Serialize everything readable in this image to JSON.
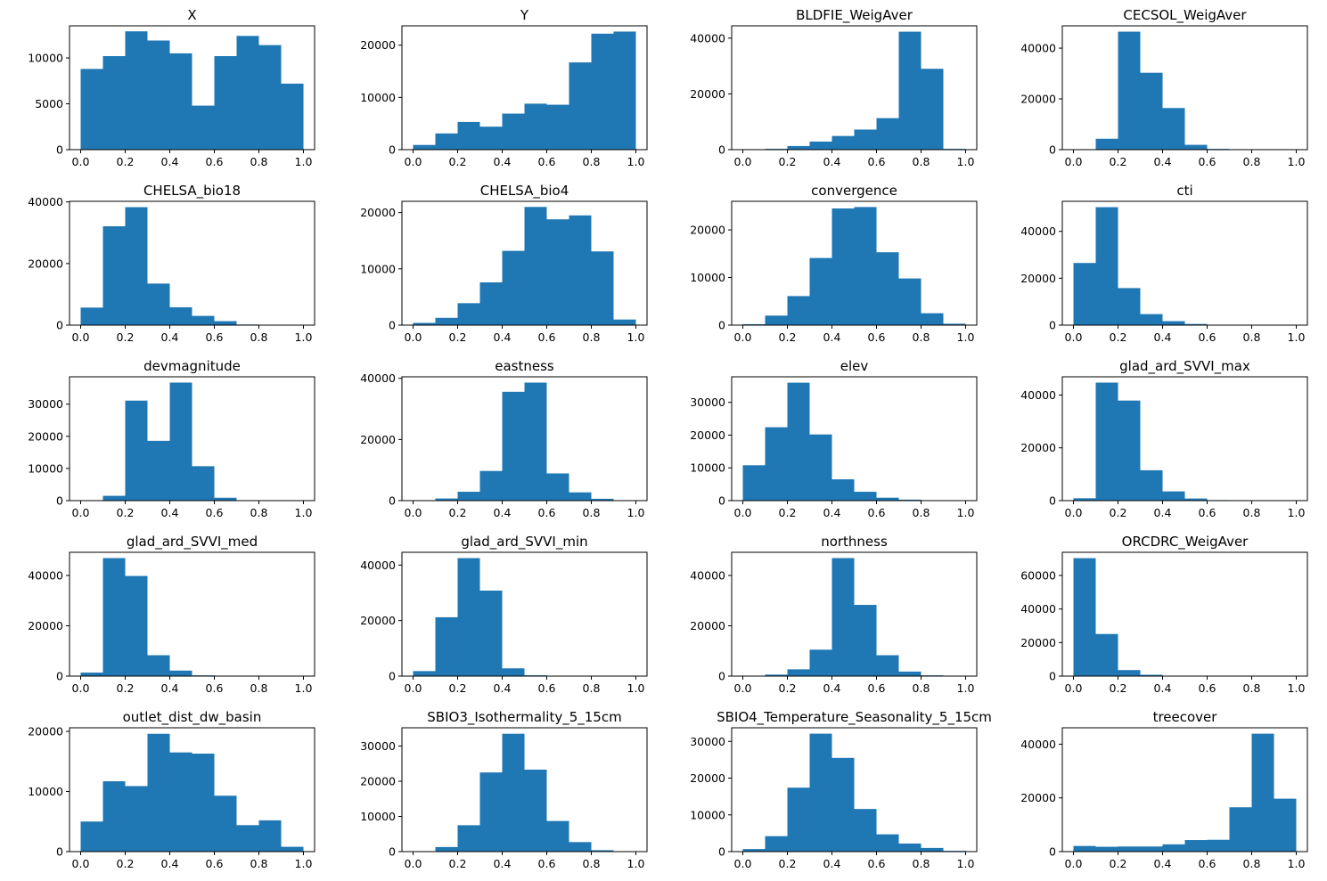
{
  "colors": {
    "bar": "#1f77b4",
    "axis": "#000000",
    "background": "#ffffff"
  },
  "chart_data": [
    {
      "type": "bar",
      "title": "X",
      "bin_edges": [
        0,
        0.1,
        0.2,
        0.3,
        0.4,
        0.5,
        0.6,
        0.7,
        0.8,
        0.9,
        1.0
      ],
      "values": [
        8800,
        10200,
        12900,
        11900,
        10500,
        4800,
        10200,
        12400,
        11400,
        7200
      ],
      "xlim": [
        -0.05,
        1.05
      ],
      "ylim": [
        0,
        13500
      ],
      "xticks": [
        0,
        0.2,
        0.4,
        0.6,
        0.8,
        1.0
      ],
      "xtick_labels": [
        "0.0",
        "0.2",
        "0.4",
        "0.6",
        "0.8",
        "1.0"
      ],
      "yticks": [
        0,
        5000,
        10000
      ],
      "ytick_labels": [
        "0",
        "5000",
        "10000"
      ]
    },
    {
      "type": "bar",
      "title": "Y",
      "bin_edges": [
        0,
        0.1,
        0.2,
        0.3,
        0.4,
        0.5,
        0.6,
        0.7,
        0.8,
        0.9,
        1.0
      ],
      "values": [
        900,
        3100,
        5300,
        4400,
        6900,
        8800,
        8600,
        16700,
        22200,
        22600
      ],
      "xlim": [
        -0.05,
        1.05
      ],
      "ylim": [
        0,
        23700
      ],
      "xticks": [
        0,
        0.2,
        0.4,
        0.6,
        0.8,
        1.0
      ],
      "xtick_labels": [
        "0.0",
        "0.2",
        "0.4",
        "0.6",
        "0.8",
        "1.0"
      ],
      "yticks": [
        0,
        10000,
        20000
      ],
      "ytick_labels": [
        "0",
        "10000",
        "20000"
      ]
    },
    {
      "type": "bar",
      "title": "BLDFIE_WeigAver",
      "bin_edges": [
        0,
        0.1,
        0.2,
        0.3,
        0.4,
        0.5,
        0.6,
        0.7,
        0.8,
        0.9,
        1.0
      ],
      "values": [
        0,
        300,
        1300,
        2900,
        4900,
        7200,
        11300,
        42300,
        29000,
        300
      ],
      "xlim": [
        -0.05,
        1.05
      ],
      "ylim": [
        0,
        44400
      ],
      "xticks": [
        0,
        0.2,
        0.4,
        0.6,
        0.8,
        1.0
      ],
      "xtick_labels": [
        "0.0",
        "0.2",
        "0.4",
        "0.6",
        "0.8",
        "1.0"
      ],
      "yticks": [
        0,
        20000,
        40000
      ],
      "ytick_labels": [
        "0",
        "20000",
        "40000"
      ]
    },
    {
      "type": "bar",
      "title": "CECSOL_WeigAver",
      "bin_edges": [
        0,
        0.1,
        0.2,
        0.3,
        0.4,
        0.5,
        0.6,
        0.7,
        0.8,
        0.9,
        1.0
      ],
      "values": [
        0,
        4300,
        46500,
        30300,
        16400,
        1900,
        300,
        100,
        0,
        0
      ],
      "xlim": [
        -0.05,
        1.05
      ],
      "ylim": [
        0,
        48800
      ],
      "xticks": [
        0,
        0.2,
        0.4,
        0.6,
        0.8,
        1.0
      ],
      "xtick_labels": [
        "0.0",
        "0.2",
        "0.4",
        "0.6",
        "0.8",
        "1.0"
      ],
      "yticks": [
        0,
        20000,
        40000
      ],
      "ytick_labels": [
        "0",
        "20000",
        "40000"
      ]
    },
    {
      "type": "bar",
      "title": "CHELSA_bio18",
      "bin_edges": [
        0,
        0.1,
        0.2,
        0.3,
        0.4,
        0.5,
        0.6,
        0.7,
        0.8,
        0.9,
        1.0
      ],
      "values": [
        5700,
        32100,
        38300,
        13500,
        5800,
        3000,
        1300,
        200,
        100,
        0
      ],
      "xlim": [
        -0.05,
        1.05
      ],
      "ylim": [
        0,
        40200
      ],
      "xticks": [
        0,
        0.2,
        0.4,
        0.6,
        0.8,
        1.0
      ],
      "xtick_labels": [
        "0.0",
        "0.2",
        "0.4",
        "0.6",
        "0.8",
        "1.0"
      ],
      "yticks": [
        0,
        20000,
        40000
      ],
      "ytick_labels": [
        "0",
        "20000",
        "40000"
      ]
    },
    {
      "type": "bar",
      "title": "CHELSA_bio4",
      "bin_edges": [
        0,
        0.1,
        0.2,
        0.3,
        0.4,
        0.5,
        0.6,
        0.7,
        0.8,
        0.9,
        1.0
      ],
      "values": [
        400,
        1300,
        3900,
        7600,
        13200,
        21000,
        18800,
        19500,
        13100,
        1000
      ],
      "xlim": [
        -0.05,
        1.05
      ],
      "ylim": [
        0,
        22000
      ],
      "xticks": [
        0,
        0.2,
        0.4,
        0.6,
        0.8,
        1.0
      ],
      "xtick_labels": [
        "0.0",
        "0.2",
        "0.4",
        "0.6",
        "0.8",
        "1.0"
      ],
      "yticks": [
        0,
        10000,
        20000
      ],
      "ytick_labels": [
        "0",
        "10000",
        "20000"
      ]
    },
    {
      "type": "bar",
      "title": "convergence",
      "bin_edges": [
        0,
        0.1,
        0.2,
        0.3,
        0.4,
        0.5,
        0.6,
        0.7,
        0.8,
        0.9,
        1.0
      ],
      "values": [
        200,
        2000,
        6100,
        14100,
        24500,
        24800,
        15300,
        9800,
        2500,
        300
      ],
      "xlim": [
        -0.05,
        1.05
      ],
      "ylim": [
        0,
        26000
      ],
      "xticks": [
        0,
        0.2,
        0.4,
        0.6,
        0.8,
        1.0
      ],
      "xtick_labels": [
        "0.0",
        "0.2",
        "0.4",
        "0.6",
        "0.8",
        "1.0"
      ],
      "yticks": [
        0,
        10000,
        20000
      ],
      "ytick_labels": [
        "0",
        "10000",
        "20000"
      ]
    },
    {
      "type": "bar",
      "title": "cti",
      "bin_edges": [
        0,
        0.1,
        0.2,
        0.3,
        0.4,
        0.5,
        0.6,
        0.7,
        0.8,
        0.9,
        1.0
      ],
      "values": [
        26500,
        50300,
        15800,
        4700,
        1700,
        500,
        100,
        0,
        0,
        0
      ],
      "xlim": [
        -0.05,
        1.05
      ],
      "ylim": [
        0,
        52800
      ],
      "xticks": [
        0,
        0.2,
        0.4,
        0.6,
        0.8,
        1.0
      ],
      "xtick_labels": [
        "0.0",
        "0.2",
        "0.4",
        "0.6",
        "0.8",
        "1.0"
      ],
      "yticks": [
        0,
        20000,
        40000
      ],
      "ytick_labels": [
        "0",
        "20000",
        "40000"
      ]
    },
    {
      "type": "bar",
      "title": "devmagnitude",
      "bin_edges": [
        0,
        0.1,
        0.2,
        0.3,
        0.4,
        0.5,
        0.6,
        0.7,
        0.8,
        0.9,
        1.0
      ],
      "values": [
        0,
        1500,
        31100,
        18600,
        36700,
        10700,
        900,
        100,
        0,
        0
      ],
      "xlim": [
        -0.05,
        1.05
      ],
      "ylim": [
        0,
        38500
      ],
      "xticks": [
        0,
        0.2,
        0.4,
        0.6,
        0.8,
        1.0
      ],
      "xtick_labels": [
        "0.0",
        "0.2",
        "0.4",
        "0.6",
        "0.8",
        "1.0"
      ],
      "yticks": [
        0,
        10000,
        20000,
        30000
      ],
      "ytick_labels": [
        "0",
        "10000",
        "20000",
        "30000"
      ]
    },
    {
      "type": "bar",
      "title": "eastness",
      "bin_edges": [
        0,
        0.1,
        0.2,
        0.3,
        0.4,
        0.5,
        0.6,
        0.7,
        0.8,
        0.9,
        1.0
      ],
      "values": [
        100,
        700,
        2900,
        9700,
        35600,
        38600,
        8900,
        2700,
        600,
        100
      ],
      "xlim": [
        -0.05,
        1.05
      ],
      "ylim": [
        0,
        40500
      ],
      "xticks": [
        0,
        0.2,
        0.4,
        0.6,
        0.8,
        1.0
      ],
      "xtick_labels": [
        "0.0",
        "0.2",
        "0.4",
        "0.6",
        "0.8",
        "1.0"
      ],
      "yticks": [
        0,
        20000,
        40000
      ],
      "ytick_labels": [
        "0",
        "20000",
        "40000"
      ]
    },
    {
      "type": "bar",
      "title": "elev",
      "bin_edges": [
        0,
        0.1,
        0.2,
        0.3,
        0.4,
        0.5,
        0.6,
        0.7,
        0.8,
        0.9,
        1.0
      ],
      "values": [
        10800,
        22400,
        36000,
        20200,
        6500,
        2700,
        900,
        300,
        100,
        0
      ],
      "xlim": [
        -0.05,
        1.05
      ],
      "ylim": [
        0,
        37800
      ],
      "xticks": [
        0,
        0.2,
        0.4,
        0.6,
        0.8,
        1.0
      ],
      "xtick_labels": [
        "0.0",
        "0.2",
        "0.4",
        "0.6",
        "0.8",
        "1.0"
      ],
      "yticks": [
        0,
        10000,
        20000,
        30000
      ],
      "ytick_labels": [
        "0",
        "10000",
        "20000",
        "30000"
      ]
    },
    {
      "type": "bar",
      "title": "glad_ard_SVVI_max",
      "bin_edges": [
        0,
        0.1,
        0.2,
        0.3,
        0.4,
        0.5,
        0.6,
        0.7,
        0.8,
        0.9,
        1.0
      ],
      "values": [
        900,
        44700,
        37900,
        11500,
        3500,
        800,
        200,
        0,
        0,
        0
      ],
      "xlim": [
        -0.05,
        1.05
      ],
      "ylim": [
        0,
        46900
      ],
      "xticks": [
        0,
        0.2,
        0.4,
        0.6,
        0.8,
        1.0
      ],
      "xtick_labels": [
        "0.0",
        "0.2",
        "0.4",
        "0.6",
        "0.8",
        "1.0"
      ],
      "yticks": [
        0,
        20000,
        40000
      ],
      "ytick_labels": [
        "0",
        "20000",
        "40000"
      ]
    },
    {
      "type": "bar",
      "title": "glad_ard_SVVI_med",
      "bin_edges": [
        0,
        0.1,
        0.2,
        0.3,
        0.4,
        0.5,
        0.6,
        0.7,
        0.8,
        0.9,
        1.0
      ],
      "values": [
        1400,
        46900,
        39800,
        8300,
        2200,
        300,
        100,
        0,
        0,
        0
      ],
      "xlim": [
        -0.05,
        1.05
      ],
      "ylim": [
        0,
        49200
      ],
      "xticks": [
        0,
        0.2,
        0.4,
        0.6,
        0.8,
        1.0
      ],
      "xtick_labels": [
        "0.0",
        "0.2",
        "0.4",
        "0.6",
        "0.8",
        "1.0"
      ],
      "yticks": [
        0,
        20000,
        40000
      ],
      "ytick_labels": [
        "0",
        "20000",
        "40000"
      ]
    },
    {
      "type": "bar",
      "title": "glad_ard_SVVI_min",
      "bin_edges": [
        0,
        0.1,
        0.2,
        0.3,
        0.4,
        0.5,
        0.6,
        0.7,
        0.8,
        0.9,
        1.0
      ],
      "values": [
        1800,
        21200,
        42500,
        30800,
        2800,
        300,
        0,
        0,
        0,
        0
      ],
      "xlim": [
        -0.05,
        1.05
      ],
      "ylim": [
        0,
        44600
      ],
      "xticks": [
        0,
        0.2,
        0.4,
        0.6,
        0.8,
        1.0
      ],
      "xtick_labels": [
        "0.0",
        "0.2",
        "0.4",
        "0.6",
        "0.8",
        "1.0"
      ],
      "yticks": [
        0,
        20000,
        40000
      ],
      "ytick_labels": [
        "0",
        "20000",
        "40000"
      ]
    },
    {
      "type": "bar",
      "title": "northness",
      "bin_edges": [
        0,
        0.1,
        0.2,
        0.3,
        0.4,
        0.5,
        0.6,
        0.7,
        0.8,
        0.9,
        1.0
      ],
      "values": [
        100,
        600,
        2700,
        10500,
        46900,
        28300,
        8300,
        1800,
        300,
        0
      ],
      "xlim": [
        -0.05,
        1.05
      ],
      "ylim": [
        0,
        49200
      ],
      "xticks": [
        0,
        0.2,
        0.4,
        0.6,
        0.8,
        1.0
      ],
      "xtick_labels": [
        "0.0",
        "0.2",
        "0.4",
        "0.6",
        "0.8",
        "1.0"
      ],
      "yticks": [
        0,
        20000,
        40000
      ],
      "ytick_labels": [
        "0",
        "20000",
        "40000"
      ]
    },
    {
      "type": "bar",
      "title": "ORCDRC_WeigAver",
      "bin_edges": [
        0,
        0.1,
        0.2,
        0.3,
        0.4,
        0.5,
        0.6,
        0.7,
        0.8,
        0.9,
        1.0
      ],
      "values": [
        70300,
        25100,
        3600,
        800,
        200,
        100,
        0,
        0,
        0,
        0
      ],
      "xlim": [
        -0.05,
        1.05
      ],
      "ylim": [
        0,
        73800
      ],
      "xticks": [
        0,
        0.2,
        0.4,
        0.6,
        0.8,
        1.0
      ],
      "xtick_labels": [
        "0.0",
        "0.2",
        "0.4",
        "0.6",
        "0.8",
        "1.0"
      ],
      "yticks": [
        0,
        20000,
        40000,
        60000
      ],
      "ytick_labels": [
        "0",
        "20000",
        "40000",
        "60000"
      ]
    },
    {
      "type": "bar",
      "title": "outlet_dist_dw_basin",
      "bin_edges": [
        0,
        0.1,
        0.2,
        0.3,
        0.4,
        0.5,
        0.6,
        0.7,
        0.8,
        0.9,
        1.0
      ],
      "values": [
        5000,
        11700,
        10900,
        19600,
        16500,
        16300,
        9300,
        4400,
        5200,
        800
      ],
      "xlim": [
        -0.05,
        1.05
      ],
      "ylim": [
        0,
        20600
      ],
      "xticks": [
        0,
        0.2,
        0.4,
        0.6,
        0.8,
        1.0
      ],
      "xtick_labels": [
        "0.0",
        "0.2",
        "0.4",
        "0.6",
        "0.8",
        "1.0"
      ],
      "yticks": [
        0,
        10000,
        20000
      ],
      "ytick_labels": [
        "0",
        "10000",
        "20000"
      ]
    },
    {
      "type": "bar",
      "title": "SBIO3_Isothermality_5_15cm",
      "bin_edges": [
        0,
        0.1,
        0.2,
        0.3,
        0.4,
        0.5,
        0.6,
        0.7,
        0.8,
        0.9,
        1.0
      ],
      "values": [
        100,
        1300,
        7500,
        22500,
        33500,
        23300,
        8700,
        2700,
        400,
        0
      ],
      "xlim": [
        -0.05,
        1.05
      ],
      "ylim": [
        0,
        35200
      ],
      "xticks": [
        0,
        0.2,
        0.4,
        0.6,
        0.8,
        1.0
      ],
      "xtick_labels": [
        "0.0",
        "0.2",
        "0.4",
        "0.6",
        "0.8",
        "1.0"
      ],
      "yticks": [
        0,
        10000,
        20000,
        30000
      ],
      "ytick_labels": [
        "0",
        "10000",
        "20000",
        "30000"
      ]
    },
    {
      "type": "bar",
      "title": "SBIO4_Temperature_Seasonality_5_15cm",
      "bin_edges": [
        0,
        0.1,
        0.2,
        0.3,
        0.4,
        0.5,
        0.6,
        0.7,
        0.8,
        0.9,
        1.0
      ],
      "values": [
        700,
        4200,
        17400,
        32100,
        25500,
        11600,
        4700,
        2200,
        1000,
        200
      ],
      "xlim": [
        -0.05,
        1.05
      ],
      "ylim": [
        0,
        33700
      ],
      "xticks": [
        0,
        0.2,
        0.4,
        0.6,
        0.8,
        1.0
      ],
      "xtick_labels": [
        "0.0",
        "0.2",
        "0.4",
        "0.6",
        "0.8",
        "1.0"
      ],
      "yticks": [
        0,
        10000,
        20000,
        30000
      ],
      "ytick_labels": [
        "0",
        "10000",
        "20000",
        "30000"
      ]
    },
    {
      "type": "bar",
      "title": "treecover",
      "bin_edges": [
        0,
        0.1,
        0.2,
        0.3,
        0.4,
        0.5,
        0.6,
        0.7,
        0.8,
        0.9,
        1.0
      ],
      "values": [
        2100,
        1800,
        1900,
        1900,
        2700,
        4300,
        4400,
        16500,
        43900,
        19700
      ],
      "xlim": [
        -0.05,
        1.05
      ],
      "ylim": [
        0,
        46100
      ],
      "xticks": [
        0,
        0.2,
        0.4,
        0.6,
        0.8,
        1.0
      ],
      "xtick_labels": [
        "0.0",
        "0.2",
        "0.4",
        "0.6",
        "0.8",
        "1.0"
      ],
      "yticks": [
        0,
        20000,
        40000
      ],
      "ytick_labels": [
        "0",
        "20000",
        "40000"
      ]
    }
  ]
}
